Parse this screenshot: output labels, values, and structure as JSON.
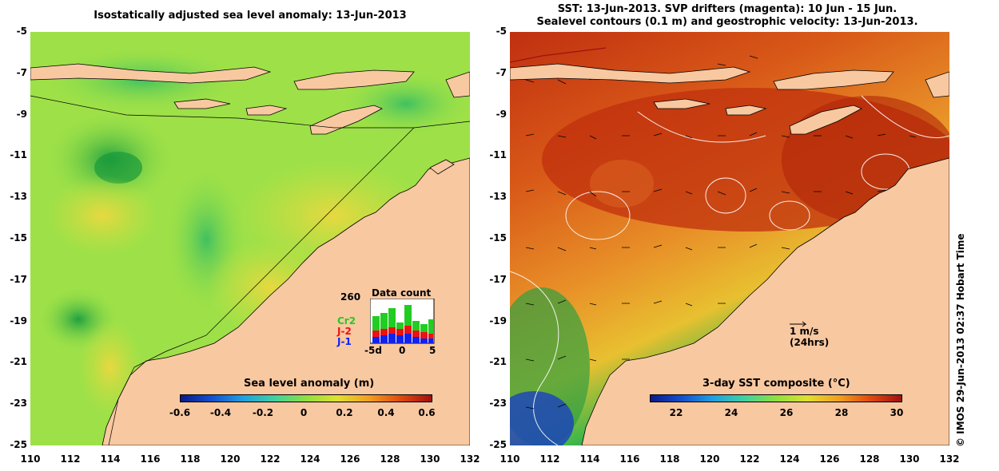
{
  "left_panel": {
    "title": "Isostatically adjusted sea level anomaly: 13-Jun-2013",
    "colorbar_title": "Sea level anomaly (m)",
    "colorbar_ticks": [
      "-0.6",
      "-0.4",
      "-0.2",
      "0",
      "0.2",
      "0.4",
      "0.6"
    ],
    "data_count": {
      "title": "Data count",
      "max_label": "260",
      "series": [
        {
          "name": "Cr2",
          "color": "#22cc22"
        },
        {
          "name": "J-2",
          "color": "#ee1111"
        },
        {
          "name": "J-1",
          "color": "#1122ee"
        }
      ],
      "x_ticks": [
        "-5d",
        "0",
        "5"
      ]
    }
  },
  "right_panel": {
    "title_line1": "SST: 13-Jun-2013. SVP drifters (magenta): 10 Jun - 15 Jun.",
    "title_line2": "Sealevel contours (0.1 m) and geostrophic velocity: 13-Jun-2013.",
    "colorbar_title": "3-day SST composite (°C)",
    "colorbar_ticks": [
      "22",
      "24",
      "26",
      "28",
      "30"
    ],
    "velocity_key_label": "1 m/s",
    "velocity_key_sublabel": "(24hrs)"
  },
  "axes": {
    "y_ticks": [
      "-5",
      "-7",
      "-9",
      "-11",
      "-13",
      "-15",
      "-17",
      "-19",
      "-21",
      "-23",
      "-25"
    ],
    "x_ticks": [
      "110",
      "112",
      "114",
      "116",
      "118",
      "120",
      "122",
      "124",
      "126",
      "128",
      "130",
      "132"
    ],
    "lat_range": [
      -25,
      -5
    ],
    "lon_range": [
      110,
      132
    ]
  },
  "credit": "© IMOS 29-Jun-2013 02:37 Hobart Time",
  "colors": {
    "land": "#f8c8a0",
    "sla_base": "#8fe04a",
    "sst_warm": "#c83a14",
    "sst_mid": "#e88a28",
    "sst_cool": "#3ab84a",
    "sst_cold": "#1a4ac8"
  }
}
